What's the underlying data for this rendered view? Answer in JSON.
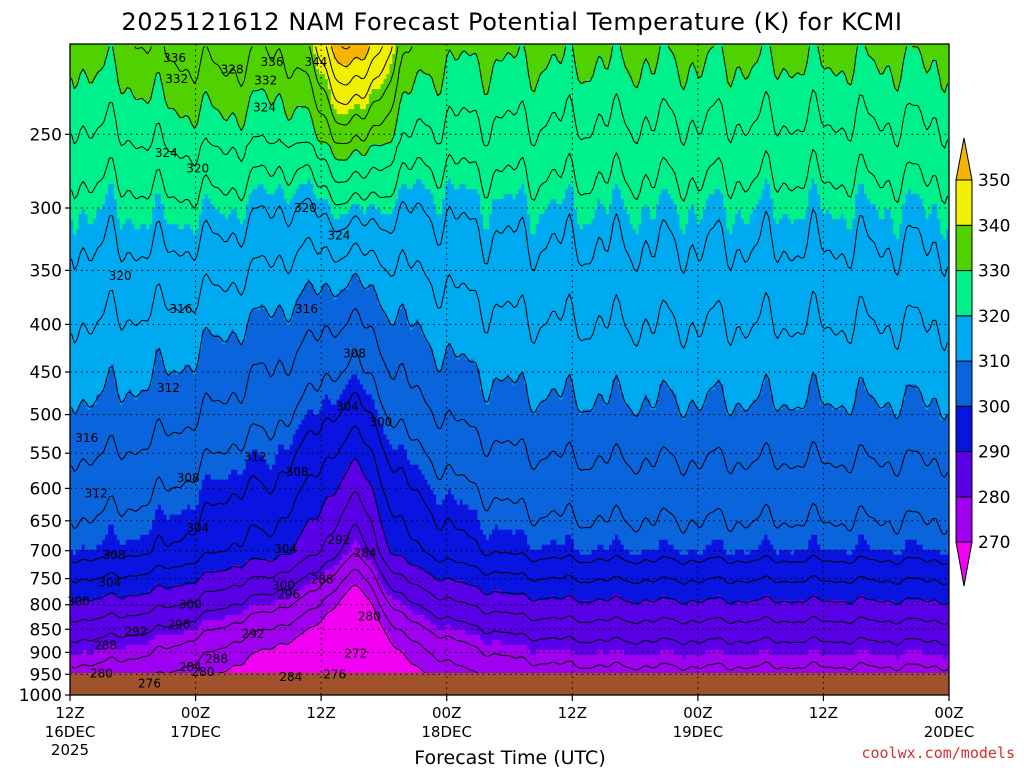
{
  "chart_data": {
    "type": "heatmap",
    "title": "2025121612 NAM Forecast Potential Temperature (K) for KCMI",
    "xlabel": "Forecast Time (UTC)",
    "ylabel": "",
    "x_ticks": [
      {
        "top": "12Z",
        "mid": "16DEC",
        "bot": "2025"
      },
      {
        "top": "00Z",
        "mid": "17DEC",
        "bot": ""
      },
      {
        "top": "12Z",
        "mid": "",
        "bot": ""
      },
      {
        "top": "00Z",
        "mid": "18DEC",
        "bot": ""
      },
      {
        "top": "12Z",
        "mid": "",
        "bot": ""
      },
      {
        "top": "00Z",
        "mid": "19DEC",
        "bot": ""
      },
      {
        "top": "12Z",
        "mid": "",
        "bot": ""
      },
      {
        "top": "00Z",
        "mid": "20DEC",
        "bot": ""
      }
    ],
    "x_range_hours": [
      0,
      84
    ],
    "y_ticks": [
      250,
      300,
      350,
      400,
      450,
      500,
      550,
      600,
      650,
      700,
      750,
      800,
      850,
      900,
      950,
      1000
    ],
    "y_range_hpa": [
      200,
      1000
    ],
    "y_scale": "log",
    "grid": true,
    "colorbar": {
      "levels": [
        270,
        280,
        290,
        300,
        310,
        320,
        330,
        340,
        350
      ],
      "colors": [
        "#f200f2",
        "#a000f0",
        "#5a00e6",
        "#0a14e0",
        "#0a64dc",
        "#00aaf0",
        "#00f08c",
        "#50d200",
        "#f0f000",
        "#f5b400"
      ]
    },
    "contour_interval_K": 4,
    "contour_labels": [
      {
        "v": 336,
        "t": 10,
        "p": 207
      },
      {
        "v": 332,
        "t": 10.2,
        "p": 218
      },
      {
        "v": 328,
        "t": 15.5,
        "p": 213
      },
      {
        "v": 336,
        "t": 19.3,
        "p": 209
      },
      {
        "v": 344,
        "t": 23.5,
        "p": 209
      },
      {
        "v": 332,
        "t": 18.7,
        "p": 219
      },
      {
        "v": 324,
        "t": 18.6,
        "p": 234
      },
      {
        "v": 324,
        "t": 9.2,
        "p": 262
      },
      {
        "v": 320,
        "t": 12.2,
        "p": 272
      },
      {
        "v": 320,
        "t": 22.5,
        "p": 300
      },
      {
        "v": 324,
        "t": 25.7,
        "p": 321
      },
      {
        "v": 320,
        "t": 4.8,
        "p": 355
      },
      {
        "v": 316,
        "t": 10.6,
        "p": 385
      },
      {
        "v": 316,
        "t": 22.6,
        "p": 385
      },
      {
        "v": 308,
        "t": 27.2,
        "p": 430
      },
      {
        "v": 312,
        "t": 9.4,
        "p": 468
      },
      {
        "v": 304,
        "t": 26.5,
        "p": 490
      },
      {
        "v": 300,
        "t": 29.7,
        "p": 509
      },
      {
        "v": 316,
        "t": 1.6,
        "p": 530
      },
      {
        "v": 312,
        "t": 17.7,
        "p": 555
      },
      {
        "v": 308,
        "t": 21.7,
        "p": 576
      },
      {
        "v": 308,
        "t": 11.3,
        "p": 585
      },
      {
        "v": 312,
        "t": 2.5,
        "p": 608
      },
      {
        "v": 304,
        "t": 12.2,
        "p": 662
      },
      {
        "v": 292,
        "t": 25.7,
        "p": 682
      },
      {
        "v": 308,
        "t": 4.2,
        "p": 707
      },
      {
        "v": 304,
        "t": 20.6,
        "p": 697
      },
      {
        "v": 284,
        "t": 28.2,
        "p": 704
      },
      {
        "v": 304,
        "t": 3.8,
        "p": 757
      },
      {
        "v": 288,
        "t": 24.1,
        "p": 752
      },
      {
        "v": 300,
        "t": 20.4,
        "p": 763
      },
      {
        "v": 296,
        "t": 20.9,
        "p": 780
      },
      {
        "v": 300,
        "t": 0.8,
        "p": 794
      },
      {
        "v": 300,
        "t": 11.5,
        "p": 800
      },
      {
        "v": 280,
        "t": 28.6,
        "p": 824
      },
      {
        "v": 296,
        "t": 10.4,
        "p": 840
      },
      {
        "v": 292,
        "t": 6.3,
        "p": 855
      },
      {
        "v": 292,
        "t": 17.5,
        "p": 860
      },
      {
        "v": 288,
        "t": 3.4,
        "p": 885
      },
      {
        "v": 272,
        "t": 27.3,
        "p": 902
      },
      {
        "v": 288,
        "t": 14.0,
        "p": 915
      },
      {
        "v": 284,
        "t": 11.5,
        "p": 933
      },
      {
        "v": 280,
        "t": 3.0,
        "p": 948
      },
      {
        "v": 280,
        "t": 12.7,
        "p": 945
      },
      {
        "v": 276,
        "t": 7.6,
        "p": 972
      },
      {
        "v": 284,
        "t": 21.1,
        "p": 956
      },
      {
        "v": 276,
        "t": 25.3,
        "p": 950
      }
    ]
  },
  "credit": "coolwx.com/models"
}
